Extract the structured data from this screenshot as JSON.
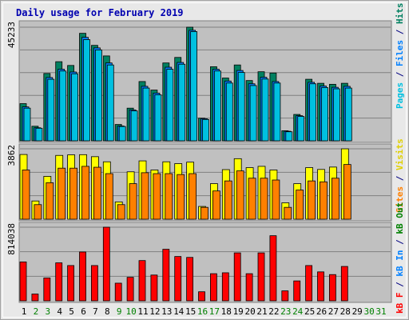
{
  "title": "Daily usage for February 2019",
  "colors": {
    "title": "#0000b0",
    "hits": "#008060",
    "files": "#0080ff",
    "pages": "#00c0e0",
    "visits": "#ffff00",
    "sites": "#ff8000",
    "kbin": "#0080ff",
    "kbout": "#008000",
    "kbf": "#ff0000",
    "panel_bg": "#c0c0c0",
    "weekday": "#000000",
    "weekend": "#008000"
  },
  "right_labels": {
    "top": [
      {
        "text": "Pages",
        "color": "#00c0e0"
      },
      {
        "text": " / ",
        "color": "#000080"
      },
      {
        "text": "Files",
        "color": "#0080ff"
      },
      {
        "text": " / ",
        "color": "#000080"
      },
      {
        "text": "Hits",
        "color": "#008060"
      }
    ],
    "middle": [
      {
        "text": "Sites",
        "color": "#ff8000"
      },
      {
        "text": " / ",
        "color": "#000080"
      },
      {
        "text": "Visits",
        "color": "#e0d000"
      }
    ],
    "bottom": [
      {
        "text": "kB F",
        "color": "#ff0000"
      },
      {
        "text": " / ",
        "color": "#000080"
      },
      {
        "text": "kB In",
        "color": "#0080ff"
      },
      {
        "text": " / ",
        "color": "#000080"
      },
      {
        "text": "kB Out",
        "color": "#008000"
      }
    ]
  },
  "chart_data": {
    "type": "bar",
    "title": "Daily usage for February 2019",
    "categories": [
      "1",
      "2",
      "3",
      "4",
      "5",
      "6",
      "7",
      "8",
      "9",
      "10",
      "11",
      "12",
      "13",
      "14",
      "15",
      "16",
      "17",
      "18",
      "19",
      "20",
      "21",
      "22",
      "23",
      "24",
      "25",
      "26",
      "27",
      "28",
      "29",
      "30",
      "31"
    ],
    "weekend_days": [
      "2",
      "3",
      "9",
      "10",
      "16",
      "17",
      "23",
      "24",
      "30",
      "31"
    ],
    "panels": [
      {
        "id": "hits_files_pages",
        "max_label": "45233",
        "ylim": [
          0,
          45233
        ],
        "series": [
          {
            "name": "Hits",
            "values": [
              14800,
              5800,
              26800,
              31500,
              30000,
              42800,
              38000,
              33800,
              6500,
              13000,
              23600,
              20200,
              31000,
              33200,
              45233,
              9000,
              29500,
              25000,
              30200,
              24000,
              27500,
              27000,
              4000,
              10500,
              24500,
              22900,
              22500,
              22900,
              0,
              0,
              0
            ]
          },
          {
            "name": "Files",
            "values": [
              13500,
              5200,
              25200,
              28500,
              27400,
              41200,
              37000,
              31000,
              5900,
              12300,
              21700,
              19000,
              29300,
              31200,
              44000,
              8800,
              28500,
              23800,
              28000,
              22700,
              25300,
              23600,
              3800,
              10000,
              23300,
              21800,
              21300,
              21700,
              0,
              0,
              0
            ]
          },
          {
            "name": "Pages",
            "values": [
              13000,
              5000,
              24500,
              27800,
              26700,
              40300,
              36200,
              30200,
              5700,
              11900,
              21000,
              18300,
              28500,
              30500,
              43500,
              8500,
              27800,
              23000,
              27200,
              22000,
              24600,
              23000,
              3600,
              9700,
              22700,
              21200,
              20700,
              21000,
              0,
              0,
              0
            ]
          }
        ]
      },
      {
        "id": "visits_sites",
        "max_label": "3862",
        "ylim": [
          0,
          3862
        ],
        "series": [
          {
            "name": "Visits",
            "values": [
              3550,
              1000,
              2350,
              3500,
              3530,
              3540,
              3430,
              3150,
              950,
              2600,
              3200,
              2700,
              3150,
              3050,
              3130,
              700,
              1950,
              2720,
              3320,
              2830,
              2900,
              2700,
              900,
              1950,
              2830,
              2730,
              2860,
              3862,
              0,
              0,
              0
            ]
          },
          {
            "name": "Sites",
            "values": [
              2700,
              800,
              2000,
              2800,
              2800,
              2900,
              2850,
              2500,
              800,
              1950,
              2550,
              2500,
              2500,
              2450,
              2500,
              650,
              1550,
              2100,
              2650,
              2250,
              2250,
              2150,
              650,
              1600,
              2100,
              2050,
              2250,
              3000,
              0,
              0,
              0
            ]
          }
        ]
      },
      {
        "id": "kbytes",
        "max_label": "814038",
        "ylim": [
          0,
          814038
        ],
        "series": [
          {
            "name": "kB F",
            "values": [
              430000,
              75000,
              253000,
              420000,
              390000,
              540000,
              390000,
              814000,
              195000,
              260000,
              445000,
              285000,
              570000,
              490000,
              480000,
              100000,
              300000,
              310000,
              530000,
              300000,
              530000,
              720000,
              110000,
              220000,
              390000,
              320000,
              290000,
              380000,
              0,
              0,
              0
            ]
          }
        ]
      }
    ]
  }
}
